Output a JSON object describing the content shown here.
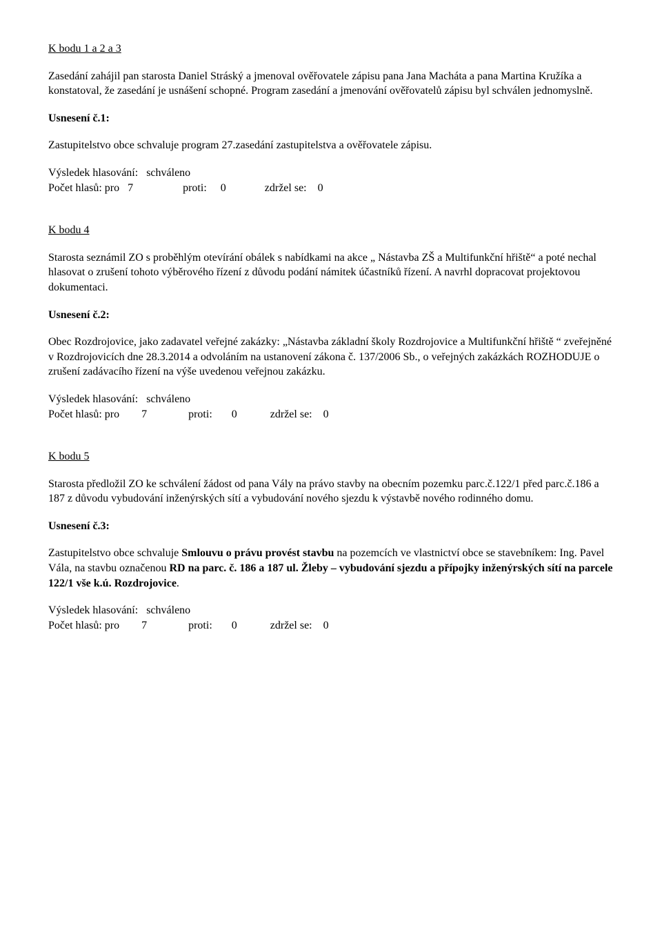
{
  "sections": {
    "s1": {
      "heading": "K bodu 1 a 2 a 3",
      "p1": "Zasedání zahájil pan starosta Daniel Stráský a jmenoval ověřovatele zápisu pana Jana Macháta a pana Martina Kružíka a konstatoval, že zasedání je usnášení schopné. Program zasedání a jmenování ověřovatelů zápisu byl schválen jednomyslně.",
      "resLabel": "Usnesení č.1:",
      "resText": "Zastupitelstvo obce schvaluje program 27.zasedání zastupitelstva a ověřovatele zápisu.",
      "vote": {
        "result": "Výsledek hlasování:   schváleno",
        "counts": "Počet hlasů: pro   7                  proti:     0              zdržel se:    0"
      }
    },
    "s2": {
      "heading": "K bodu 4",
      "p1": "Starosta seznámil ZO s proběhlým otevírání obálek s nabídkami na akce „ Nástavba ZŠ a Multifunkční hřiště“ a poté nechal hlasovat o zrušení tohoto výběrového řízení z důvodu podání námitek účastníků řízení. A navrhl dopracovat projektovou dokumentaci.",
      "resLabel": "Usnesení č.2:",
      "resText": "Obec Rozdrojovice,  jako zadavatel veřejné zakázky: „Nástavba základní školy Rozdrojovice a Multifunkční hřiště “ zveřejněné v Rozdrojovicích dne 28.3.2014 a odvoláním na ustanovení zákona č. 137/2006 Sb., o veřejných zakázkách  ROZHODUJE o zrušení zadávacího řízení na výše uvedenou veřejnou  zakázku.",
      "vote": {
        "result": "Výsledek hlasování:   schváleno",
        "counts": "Počet hlasů: pro        7               proti:       0            zdržel se:    0"
      }
    },
    "s3": {
      "heading": "K bodu 5",
      "p1": "Starosta předložil ZO ke schválení žádost od pana Vály na právo stavby na obecním pozemku parc.č.122/1 před parc.č.186 a 187 z důvodu vybudování inženýrských sítí a vybudování nového sjezdu k výstavbě nového rodinného domu.",
      "resLabel": "Usnesení č.3:",
      "resTextPrefix": "Zastupitelstvo obce schvaluje ",
      "resBold1": "Smlouvu o právu provést stavbu",
      "resMid": " na pozemcích ve vlastnictví obce se stavebníkem: Ing. Pavel Vála,  na stavbu označenou ",
      "resBold2": "RD na parc. č. 186 a 187 ul. Žleby – vybudování sjezdu a přípojky inženýrských sítí na parcele 122/1 vše k.ú. Rozdrojovice",
      "resTextSuffix": ".",
      "vote": {
        "result": "Výsledek hlasování:   schváleno",
        "counts": "Počet hlasů: pro        7               proti:       0            zdržel se:    0"
      }
    }
  }
}
